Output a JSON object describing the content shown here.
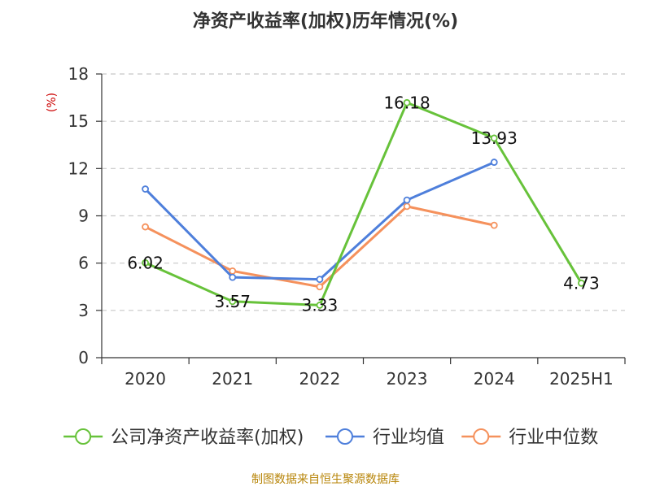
{
  "chart_data": {
    "type": "line",
    "title": "净资产收益率(加权)历年情况(%)",
    "ylabel": "(%)",
    "xlabel": "",
    "categories": [
      "2020",
      "2021",
      "2022",
      "2023",
      "2024",
      "2025H1"
    ],
    "ylim": [
      0,
      18
    ],
    "yticks": [
      0,
      3,
      6,
      9,
      12,
      15,
      18
    ],
    "grid": true,
    "legend_position": "bottom",
    "series": [
      {
        "name": "公司净资产收益率(加权)",
        "color": "#67c23a",
        "values": [
          6.02,
          3.57,
          3.33,
          16.18,
          13.93,
          4.73
        ],
        "labels": [
          "6.02",
          "3.57",
          "3.33",
          "16.18",
          "13.93",
          "4.73"
        ]
      },
      {
        "name": "行业均值",
        "color": "#4e7fdb",
        "values": [
          10.7,
          5.1,
          4.97,
          10.0,
          12.4,
          null
        ]
      },
      {
        "name": "行业中位数",
        "color": "#f5915c",
        "values": [
          8.3,
          5.5,
          4.5,
          9.6,
          8.4,
          null
        ]
      }
    ],
    "source": "制图数据来自恒生聚源数据库"
  },
  "colors": {
    "title": "#333333",
    "axis": "#333333",
    "grid": "#c8c8c8",
    "ylabel": "#cc0000",
    "source": "#b8860b"
  }
}
